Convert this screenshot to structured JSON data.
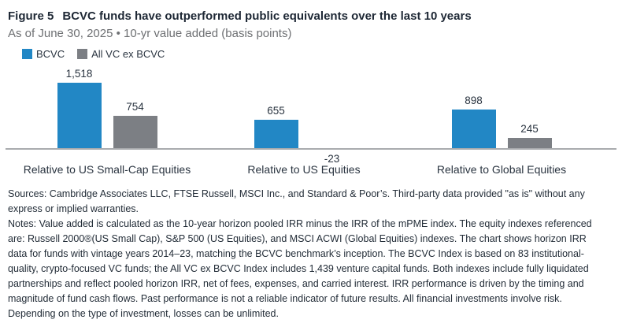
{
  "header": {
    "figure_label": "Figure 5",
    "title": "BCVC funds have outperformed public equivalents over the last 10 years",
    "subtitle": "As of June 30, 2025 • 10-yr value added (basis points)"
  },
  "chart_data": {
    "type": "bar",
    "title": "BCVC funds have outperformed public equivalents over the last 10 years",
    "subtitle": "As of June 30, 2025 • 10-yr value added (basis points)",
    "ylabel": "10-yr value added (basis points)",
    "categories": [
      "Relative to US Small-Cap Equities",
      "Relative to US Equities",
      "Relative to Global Equities"
    ],
    "series": [
      {
        "name": "BCVC",
        "color": "#2287c5",
        "values": [
          1518,
          655,
          898
        ],
        "labels": [
          "1,518",
          "655",
          "898"
        ]
      },
      {
        "name": "All VC ex BCVC",
        "color": "#7c7f84",
        "negative_color": "#b9bbbd",
        "values": [
          754,
          -23,
          245
        ],
        "labels": [
          "754",
          "-23",
          "245"
        ]
      }
    ],
    "axis_color": "#a9abae",
    "baseline": 0,
    "grid": false,
    "legend_position": "top-left",
    "value_labels_shown": true
  },
  "footer": {
    "sources": "Sources: Cambridge Associates LLC, FTSE Russell, MSCI Inc., and Standard & Poor’s. Third-party data provided \"as is\" without any express or implied warranties.",
    "notes": "Notes: Value added is calculated as the 10-year horizon pooled IRR minus the IRR of the mPME index. The equity indexes referenced are: Russell 2000®(US Small Cap), S&P 500 (US Equities), and MSCI ACWI (Global Equities) indexes. The chart shows horizon IRR data for funds with vintage years 2014–23, matching the BCVC benchmark’s inception. The BCVC Index is based on 83 institutional-quality, crypto-focused VC funds; the All VC ex BCVC Index includes 1,439 venture capital funds. Both indexes include fully liquidated partnerships and reflect pooled horizon IRR, net of fees, expenses, and carried interest. IRR performance is driven by the timing and magnitude of fund cash flows. Past performance is not a reliable indicator of future results. All financial investments involve risk. Depending on the type of investment, losses can be unlimited."
  }
}
